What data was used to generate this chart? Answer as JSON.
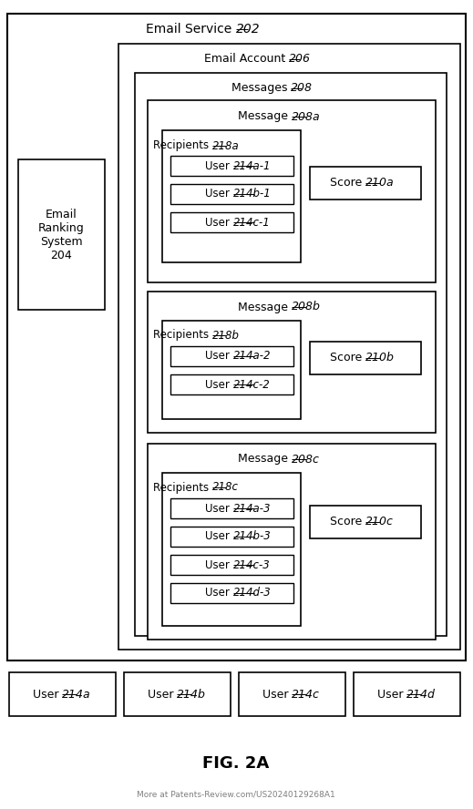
{
  "email_service_label": "Email Service ",
  "email_service_num": "202",
  "email_account_label": "Email Account ",
  "email_account_num": "206",
  "messages_label": "Messages ",
  "messages_num": "208",
  "email_ranking_label": "Email\nRanking\nSystem\n204",
  "message_a_label": "Message ",
  "message_a_num": "208a",
  "message_b_label": "Message ",
  "message_b_num": "208b",
  "message_c_label": "Message ",
  "message_c_num": "208c",
  "recipients_a_label": "Recipients ",
  "recipients_a_num": "218a",
  "recipients_b_label": "Recipients ",
  "recipients_b_num": "218b",
  "recipients_c_label": "Recipients ",
  "recipients_c_num": "218c",
  "users_a": [
    [
      "User ",
      "214a-1"
    ],
    [
      "User ",
      "214b-1"
    ],
    [
      "User ",
      "214c-1"
    ]
  ],
  "users_b": [
    [
      "User ",
      "214a-2"
    ],
    [
      "User ",
      "214c-2"
    ]
  ],
  "users_c": [
    [
      "User ",
      "214a-3"
    ],
    [
      "User ",
      "214b-3"
    ],
    [
      "User ",
      "214c-3"
    ],
    [
      "User ",
      "214d-3"
    ]
  ],
  "score_a_label": "Score ",
  "score_a_num": "210a",
  "score_b_label": "Score ",
  "score_b_num": "210b",
  "score_c_label": "Score ",
  "score_c_num": "210c",
  "bottom_users": [
    [
      "User ",
      "214a"
    ],
    [
      "User ",
      "214b"
    ],
    [
      "User ",
      "214c"
    ],
    [
      "User ",
      "214d"
    ]
  ],
  "fig_label": "FIG. 2A",
  "watermark": "More at Patents-Review.com/US20240129268A1",
  "bg_color": "#ffffff"
}
